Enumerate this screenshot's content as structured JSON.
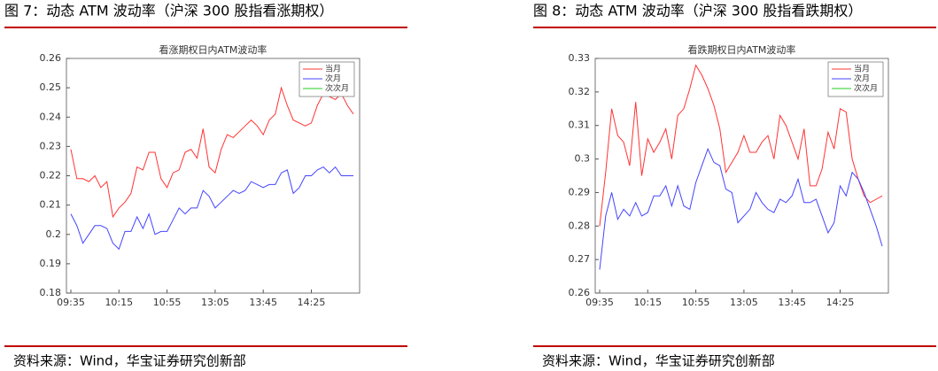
{
  "chart_data": [
    {
      "type": "line",
      "caption": "图 7：动态 ATM 波动率（沪深 300 股指看涨期权）",
      "title": "看涨期权日内ATM波动率",
      "source": "资料来源：Wind，华宝证券研究创新部",
      "categories": [
        "09:35",
        null,
        null,
        null,
        null,
        null,
        null,
        null,
        "10:15",
        null,
        null,
        null,
        null,
        null,
        null,
        null,
        "10:55",
        null,
        null,
        null,
        null,
        null,
        null,
        null,
        "13:05",
        null,
        null,
        null,
        null,
        null,
        null,
        null,
        "13:45",
        null,
        null,
        null,
        null,
        null,
        null,
        null,
        "14:25",
        null,
        null,
        null,
        null,
        null,
        null,
        null
      ],
      "ylim": [
        0.18,
        0.26
      ],
      "yticks": [
        0.18,
        0.19,
        0.2,
        0.21,
        0.22,
        0.23,
        0.24,
        0.25,
        0.26
      ],
      "series": [
        {
          "name": "当月",
          "color": "#ff3333",
          "values": [
            0.229,
            0.219,
            0.219,
            0.218,
            0.22,
            0.216,
            0.218,
            0.206,
            0.209,
            0.211,
            0.214,
            0.223,
            0.222,
            0.228,
            0.228,
            0.219,
            0.216,
            0.221,
            0.222,
            0.228,
            0.229,
            0.226,
            0.236,
            0.223,
            0.221,
            0.229,
            0.234,
            0.233,
            0.235,
            0.237,
            0.239,
            0.237,
            0.234,
            0.239,
            0.241,
            0.25,
            0.244,
            0.239,
            0.238,
            0.237,
            0.238,
            0.244,
            0.248,
            0.247,
            0.246,
            0.248,
            0.244,
            0.241
          ]
        },
        {
          "name": "次月",
          "color": "#4444ff",
          "values": [
            0.207,
            0.203,
            0.197,
            0.2,
            0.203,
            0.203,
            0.202,
            0.197,
            0.195,
            0.201,
            0.201,
            0.206,
            0.202,
            0.207,
            0.2,
            0.201,
            0.201,
            0.205,
            0.209,
            0.207,
            0.209,
            0.209,
            0.215,
            0.213,
            0.209,
            0.211,
            0.213,
            0.215,
            0.214,
            0.215,
            0.218,
            0.217,
            0.216,
            0.217,
            0.217,
            0.221,
            0.222,
            0.214,
            0.216,
            0.22,
            0.22,
            0.222,
            0.223,
            0.221,
            0.223,
            0.22,
            0.22,
            0.22
          ]
        },
        {
          "name": "次次月",
          "color": "#22cc22",
          "values": [
            null,
            null,
            null,
            null,
            null,
            null,
            null,
            null,
            null,
            null,
            null,
            null,
            null,
            null,
            null,
            null,
            null,
            null,
            null,
            null,
            null,
            null,
            null,
            null,
            null,
            null,
            null,
            null,
            null,
            null,
            null,
            null,
            null,
            null,
            null,
            null,
            null,
            null,
            null,
            null,
            null,
            null,
            null,
            null,
            null,
            null,
            null,
            null
          ]
        }
      ]
    },
    {
      "type": "line",
      "caption": "图 8：动态 ATM 波动率（沪深 300 股指看跌期权）",
      "title": "看跌期权日内ATM波动率",
      "source": "资料来源：Wind，华宝证券研究创新部",
      "categories": [
        "09:35",
        null,
        null,
        null,
        null,
        null,
        null,
        null,
        "10:15",
        null,
        null,
        null,
        null,
        null,
        null,
        null,
        "10:55",
        null,
        null,
        null,
        null,
        null,
        null,
        null,
        "13:05",
        null,
        null,
        null,
        null,
        null,
        null,
        null,
        "13:45",
        null,
        null,
        null,
        null,
        null,
        null,
        null,
        "14:25",
        null,
        null,
        null,
        null,
        null,
        null,
        null
      ],
      "ylim": [
        0.26,
        0.33
      ],
      "yticks": [
        0.26,
        0.27,
        0.28,
        0.29,
        0.3,
        0.31,
        0.32,
        0.33
      ],
      "series": [
        {
          "name": "当月",
          "color": "#ff3333",
          "values": [
            0.28,
            0.296,
            0.315,
            0.307,
            0.305,
            0.298,
            0.317,
            0.295,
            0.306,
            0.302,
            0.305,
            0.309,
            0.3,
            0.313,
            0.315,
            0.321,
            0.328,
            0.325,
            0.321,
            0.316,
            0.309,
            0.296,
            0.299,
            0.302,
            0.307,
            0.302,
            0.302,
            0.305,
            0.307,
            0.3,
            0.313,
            0.31,
            0.305,
            0.3,
            0.309,
            0.292,
            0.292,
            0.297,
            0.308,
            0.303,
            0.315,
            0.314,
            0.3,
            0.294,
            0.289,
            0.287,
            0.288,
            0.289
          ]
        },
        {
          "name": "次月",
          "color": "#4444ff",
          "values": [
            0.267,
            0.283,
            0.29,
            0.282,
            0.285,
            0.283,
            0.287,
            0.283,
            0.284,
            0.289,
            0.289,
            0.292,
            0.286,
            0.292,
            0.286,
            0.285,
            0.293,
            0.298,
            0.303,
            0.299,
            0.298,
            0.291,
            0.29,
            0.281,
            0.283,
            0.285,
            0.29,
            0.287,
            0.285,
            0.284,
            0.288,
            0.287,
            0.289,
            0.294,
            0.287,
            0.287,
            0.288,
            0.283,
            0.278,
            0.281,
            0.292,
            0.289,
            0.296,
            0.294,
            0.29,
            0.285,
            0.28,
            0.274
          ]
        },
        {
          "name": "次次月",
          "color": "#22cc22",
          "values": [
            null,
            null,
            null,
            null,
            null,
            null,
            null,
            null,
            null,
            null,
            null,
            null,
            null,
            null,
            null,
            null,
            null,
            null,
            null,
            null,
            null,
            null,
            null,
            null,
            null,
            null,
            null,
            null,
            null,
            null,
            null,
            null,
            null,
            null,
            null,
            null,
            null,
            null,
            null,
            null,
            null,
            null,
            null,
            null,
            null,
            null,
            null,
            null
          ]
        }
      ]
    }
  ]
}
